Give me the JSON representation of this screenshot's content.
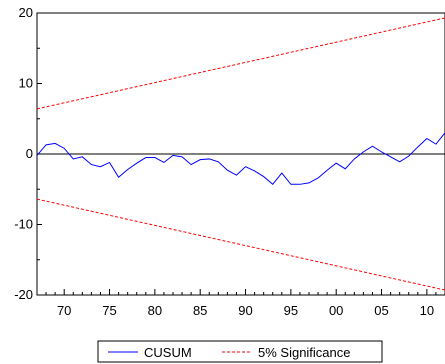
{
  "chart_data": {
    "type": "line",
    "xlim": [
      1967,
      2012
    ],
    "ylim": [
      -20,
      20
    ],
    "x_ticks": [
      "70",
      "75",
      "80",
      "85",
      "90",
      "95",
      "00",
      "05",
      "10"
    ],
    "y_ticks": [
      "20",
      "10",
      "0",
      "-10",
      "-20"
    ],
    "zero_line": true,
    "grid": false,
    "legend": {
      "position": "bottom-center",
      "entries": [
        "CUSUM",
        "5% Significance"
      ]
    },
    "colors": {
      "cusum": "#0000ff",
      "significance": "#ff0000",
      "zero": "#000000"
    },
    "series": [
      {
        "name": "CUSUM",
        "style": "solid",
        "x": [
          1967,
          1968,
          1969,
          1970,
          1971,
          1972,
          1973,
          1974,
          1975,
          1976,
          1977,
          1978,
          1979,
          1980,
          1981,
          1982,
          1983,
          1984,
          1985,
          1986,
          1987,
          1988,
          1989,
          1990,
          1991,
          1992,
          1993,
          1994,
          1995,
          1996,
          1997,
          1998,
          1999,
          2000,
          2001,
          2002,
          2003,
          2004,
          2005,
          2006,
          2007,
          2008,
          2009,
          2010,
          2011,
          2012
        ],
        "y": [
          -0.2,
          1.3,
          1.5,
          0.8,
          -0.7,
          -0.4,
          -1.5,
          -1.8,
          -1.2,
          -3.3,
          -2.2,
          -1.3,
          -0.5,
          -0.5,
          -1.2,
          -0.2,
          -0.4,
          -1.5,
          -0.8,
          -0.7,
          -1.1,
          -2.3,
          -3.0,
          -1.8,
          -2.4,
          -3.2,
          -4.3,
          -2.7,
          -4.3,
          -4.3,
          -4.1,
          -3.4,
          -2.3,
          -1.3,
          -2.1,
          -0.7,
          0.3,
          1.1,
          0.3,
          -0.4,
          -1.1,
          -0.3,
          1.0,
          2.2,
          1.4,
          3.0
        ]
      },
      {
        "name": "5% Significance",
        "style": "dashed",
        "x": [
          1967,
          2012
        ],
        "y": [
          6.4,
          19.3
        ]
      },
      {
        "name": "5% Significance",
        "style": "dashed",
        "x": [
          1967,
          2012
        ],
        "y": [
          -6.4,
          -19.3
        ]
      }
    ]
  }
}
